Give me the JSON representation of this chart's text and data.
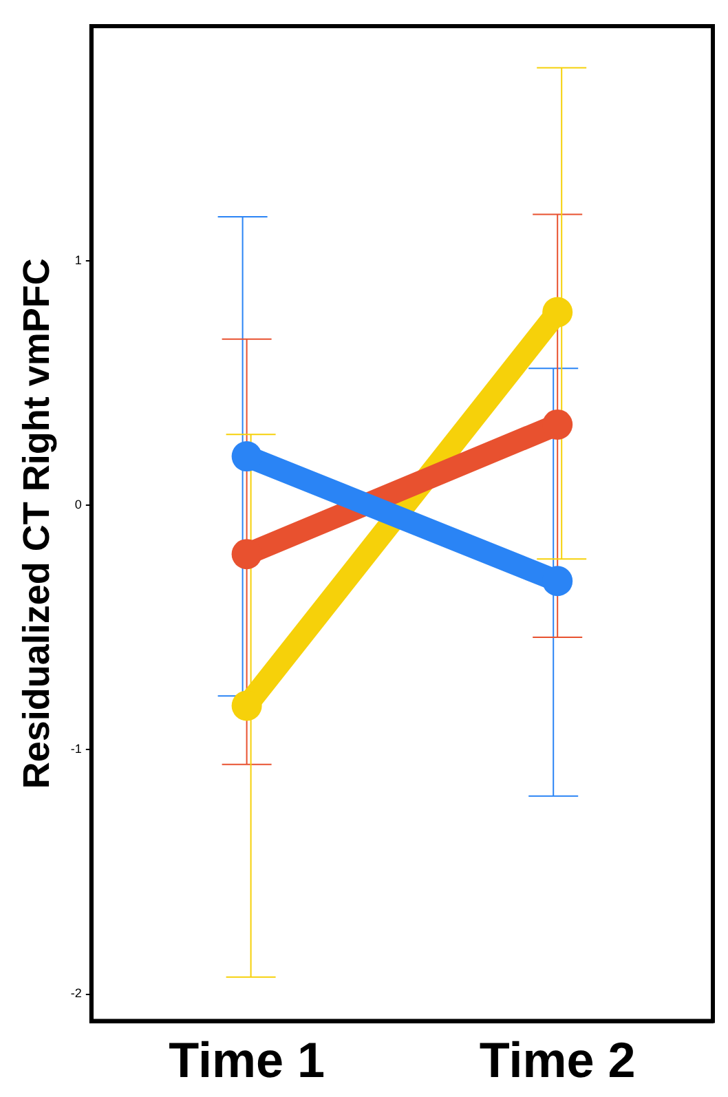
{
  "chart_data": {
    "type": "line",
    "ylabel": "Residualized CT Right vmPFC",
    "categories": [
      "Time 1",
      "Time 2"
    ],
    "series": [
      {
        "color": "#2a84f5",
        "values": [
          0.2,
          -0.31
        ],
        "errors": [
          [
            -0.78,
            1.18
          ],
          [
            -1.19,
            0.56
          ]
        ]
      },
      {
        "color": "#e8512f",
        "values": [
          -0.2,
          0.33
        ],
        "errors": [
          [
            -1.06,
            0.68
          ],
          [
            -0.54,
            1.19
          ]
        ]
      },
      {
        "color": "#f6d10a",
        "values": [
          -0.82,
          0.79
        ],
        "errors": [
          [
            -1.93,
            0.29
          ],
          [
            -0.22,
            1.79
          ]
        ]
      }
    ],
    "ylim": [
      -2.11,
      1.96
    ],
    "yticks": [
      -2,
      -1,
      0,
      1
    ],
    "grid": false,
    "legend": false,
    "marker": "circle",
    "line_style": "solid"
  }
}
